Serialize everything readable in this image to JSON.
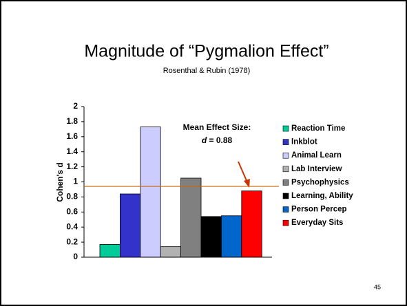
{
  "chart_data": {
    "type": "bar",
    "title": "Magnitude of “Pygmalion Effect”",
    "subtitle": "Rosenthal & Rubin (1978)",
    "y_label": "Cohen's d",
    "annotation": {
      "line1": "Mean Effect Size:",
      "symbol": "d",
      "line2": " = 0.88"
    },
    "page_number": "45",
    "categories": [
      "Reaction Time",
      "Inkblot",
      "Animal Learn",
      "Lab Interview",
      "Psychophysics",
      "Learning, Ability",
      "Person Percep",
      "Everyday Sits"
    ],
    "values": [
      0.17,
      0.84,
      1.73,
      0.14,
      1.05,
      0.54,
      0.55,
      0.88
    ],
    "colors": [
      "#00cc99",
      "#3333cc",
      "#ccccff",
      "#b2b2b2",
      "#808080",
      "#000000",
      "#0066cc",
      "#ff0000"
    ],
    "reference_line": 0.94,
    "reference_color": "#cc6600",
    "ylim": [
      0,
      2
    ],
    "yticks": [
      0,
      0.2,
      0.4,
      0.6,
      0.8,
      1,
      1.2,
      1.4,
      1.6,
      1.8,
      2
    ],
    "legend": "right"
  }
}
